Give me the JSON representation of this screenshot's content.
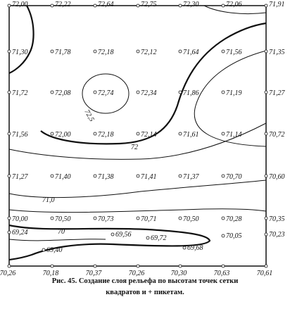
{
  "grid_rows": [
    [
      "72,00",
      "72,22",
      "72,64",
      "72,75",
      "72,30",
      "72,06",
      "71,91"
    ],
    [
      "71,30",
      "71,78",
      "72,18",
      "72,12",
      "71,64",
      "71,56",
      "71,35"
    ],
    [
      "71,72",
      "72,08",
      "72,74",
      "72,34",
      "71,86",
      "71,19",
      "71,27"
    ],
    [
      "71,56",
      "72,00",
      "72,18",
      "72,14",
      "71,61",
      "71,14",
      "70,72"
    ],
    [
      "71,27",
      "71,40",
      "71,38",
      "71,41",
      "71,37",
      "70,70",
      "70,60"
    ],
    [
      "70,00",
      "70,50",
      "70,73",
      "70,71",
      "70,50",
      "70,28",
      "70,35"
    ],
    [
      "70,26",
      "70,18",
      "70,37",
      "70,26",
      "70,30",
      "70,63",
      "70,61"
    ]
  ],
  "picket_points": [
    "69,24",
    "69,56",
    "69,72",
    "70,05",
    "70,23",
    "69,40",
    "69,68"
  ],
  "contour_labels": [
    "72,5",
    "72",
    "71,0",
    "70"
  ],
  "caption": {
    "line1": "Рис. 45. Создание слоя рельефа по высотам точек сетки",
    "line2": "квадратов и + пикетам."
  }
}
